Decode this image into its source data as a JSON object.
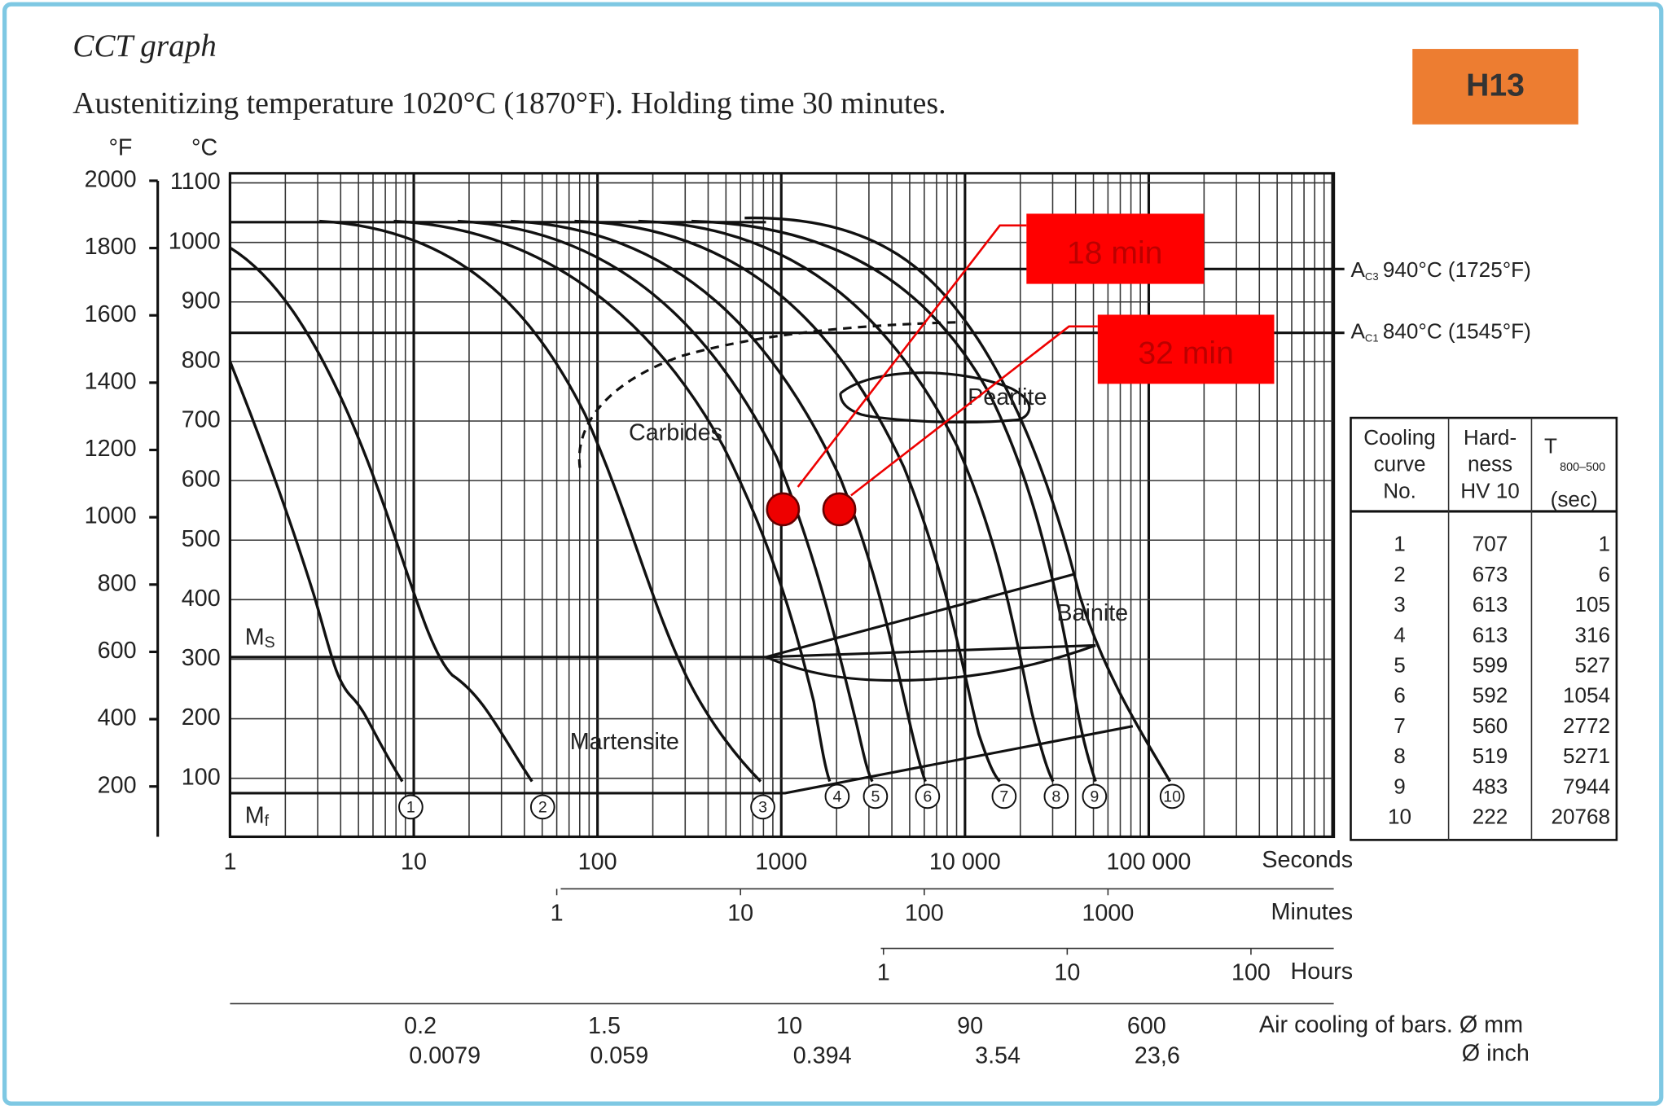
{
  "header": {
    "title": "CCT graph",
    "subtitle": "Austenitizing temperature 1020°C (1870°F). Holding time 30 minutes.",
    "badge": "H13"
  },
  "axes": {
    "fahrenheit_unit": "°F",
    "celsius_unit": "°C",
    "fahrenheit": [
      "2000",
      "1800",
      "1600",
      "1400",
      "1200",
      "1000",
      "800",
      "600",
      "400",
      "200"
    ],
    "celsius": [
      "1100",
      "1000",
      "900",
      "800",
      "700",
      "600",
      "500",
      "400",
      "300",
      "200",
      "100"
    ],
    "seconds": [
      "1",
      "10",
      "100",
      "1000",
      "10 000",
      "100 000"
    ],
    "seconds_label": "Seconds",
    "minutes": [
      "1",
      "10",
      "100",
      "1000"
    ],
    "minutes_label": "Minutes",
    "hours": [
      "1",
      "10",
      "100"
    ],
    "hours_label": "Hours",
    "bars_mm": [
      "0.2",
      "1.5",
      "10",
      "90",
      "600"
    ],
    "bars_mm_label": "Air cooling of bars. Ø mm",
    "bars_inch": [
      "0.0079",
      "0.059",
      "0.394",
      "3.54",
      "23,6"
    ],
    "bars_inch_label": "Ø inch"
  },
  "lines": {
    "ac3": {
      "symbol": "A",
      "sub": "C3",
      "text": "940°C (1725°F)"
    },
    "ac1": {
      "symbol": "A",
      "sub": "C1",
      "text": "840°C (1545°F)"
    },
    "ms": {
      "symbol": "M",
      "sub": "S"
    },
    "mf": {
      "symbol": "M",
      "sub": "f"
    }
  },
  "regions": {
    "carbides": "Carbides",
    "pearlite": "Pearlite",
    "bainite": "Bainite",
    "martensite": "Martensite"
  },
  "curve_numbers": [
    "1",
    "2",
    "3",
    "4",
    "5",
    "6",
    "7",
    "8",
    "9",
    "10"
  ],
  "annotations": [
    "18 min",
    "32 min"
  ],
  "table": {
    "headers": [
      [
        "Cooling",
        "curve",
        "No."
      ],
      [
        "Hard-",
        "ness",
        "HV 10"
      ],
      [
        "T",
        "800–500",
        "(sec)"
      ]
    ],
    "rows": [
      [
        1,
        707,
        1
      ],
      [
        2,
        673,
        6
      ],
      [
        3,
        613,
        105
      ],
      [
        4,
        613,
        316
      ],
      [
        5,
        599,
        527
      ],
      [
        6,
        592,
        1054
      ],
      [
        7,
        560,
        2772
      ],
      [
        8,
        519,
        5271
      ],
      [
        9,
        483,
        7944
      ],
      [
        10,
        222,
        20768
      ]
    ]
  }
}
